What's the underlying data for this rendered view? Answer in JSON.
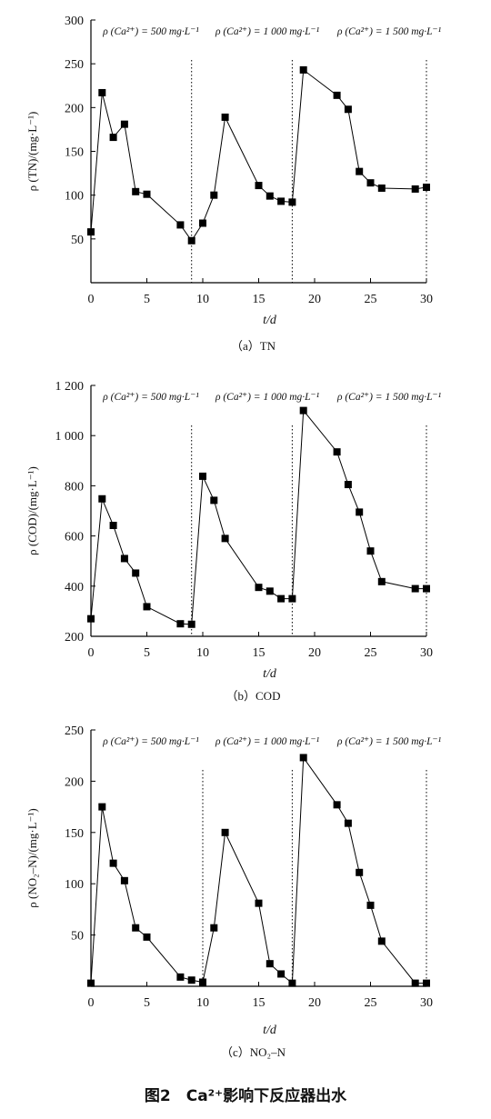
{
  "chart_data": [
    {
      "type": "line",
      "subcaption": "（a）TN",
      "ylabel": "ρ (TN)/(mg·L⁻¹)",
      "xlabel": "t/d",
      "header_labels": [
        "ρ (Ca²⁺) = 500 mg·L⁻¹",
        "ρ (Ca²⁺) = 1 000 mg·L⁻¹",
        "ρ (Ca²⁺) = 1 500 mg·L⁻¹"
      ],
      "xlim": [
        0,
        30
      ],
      "ylim": [
        0,
        300
      ],
      "xticks": [
        0,
        5,
        10,
        15,
        20,
        25,
        30
      ],
      "xtick_labels": [
        "0",
        "5",
        "10",
        "15",
        "20",
        "25",
        "30"
      ],
      "yticks": [
        50,
        100,
        150,
        200,
        250,
        300
      ],
      "ytick_labels": [
        "50",
        "100",
        "150",
        "200",
        "250",
        "300"
      ],
      "vlines": [
        9,
        18,
        30
      ],
      "series": [
        {
          "x": [
            0,
            1,
            2,
            3,
            4,
            5,
            8,
            9,
            10,
            11,
            12,
            15,
            16,
            17,
            18,
            19,
            22,
            23,
            24,
            25,
            26,
            29,
            30
          ],
          "y": [
            58,
            217,
            166,
            181,
            104,
            101,
            66,
            48,
            68,
            100,
            189,
            111,
            99,
            93,
            92,
            243,
            214,
            198,
            127,
            114,
            108,
            107,
            109
          ]
        }
      ]
    },
    {
      "type": "line",
      "subcaption": "（b）COD",
      "ylabel": "ρ (COD)/(mg·L⁻¹)",
      "xlabel": "t/d",
      "header_labels": [
        "ρ (Ca²⁺) = 500 mg·L⁻¹",
        "ρ (Ca²⁺) = 1 000 mg·L⁻¹",
        "ρ (Ca²⁺) = 1 500 mg·L⁻¹"
      ],
      "xlim": [
        0,
        30
      ],
      "ylim": [
        200,
        1200
      ],
      "xticks": [
        0,
        5,
        10,
        15,
        20,
        25,
        30
      ],
      "xtick_labels": [
        "0",
        "5",
        "10",
        "15",
        "20",
        "25",
        "30"
      ],
      "yticks": [
        200,
        400,
        600,
        800,
        1000,
        1200
      ],
      "ytick_labels": [
        "200",
        "400",
        "600",
        "800",
        "1 000",
        "1 200"
      ],
      "vlines": [
        9,
        18,
        30
      ],
      "series": [
        {
          "x": [
            0,
            1,
            2,
            3,
            4,
            5,
            8,
            9,
            10,
            11,
            12,
            15,
            16,
            17,
            18,
            19,
            22,
            23,
            24,
            25,
            26,
            29,
            30
          ],
          "y": [
            270,
            748,
            642,
            510,
            452,
            318,
            250,
            248,
            838,
            742,
            590,
            395,
            380,
            350,
            350,
            1100,
            935,
            805,
            695,
            540,
            418,
            390,
            390
          ]
        }
      ]
    },
    {
      "type": "line",
      "subcaption": "（c）NO₂–N",
      "ylabel": "ρ (NO₂–N)/(mg·L⁻¹)",
      "xlabel": "t/d",
      "header_labels": [
        "ρ (Ca²⁺) = 500 mg·L⁻¹",
        "ρ (Ca²⁺) = 1 000 mg·L⁻¹",
        "ρ (Ca²⁺) = 1 500 mg·L⁻¹"
      ],
      "xlim": [
        0,
        30
      ],
      "ylim": [
        0,
        250
      ],
      "xticks": [
        0,
        5,
        10,
        15,
        20,
        25,
        30
      ],
      "xtick_labels": [
        "0",
        "5",
        "10",
        "15",
        "20",
        "25",
        "30"
      ],
      "yticks": [
        50,
        100,
        150,
        200,
        250
      ],
      "ytick_labels": [
        "50",
        "100",
        "150",
        "200",
        "250"
      ],
      "vlines": [
        10,
        18,
        30
      ],
      "series": [
        {
          "x": [
            0,
            1,
            2,
            3,
            4,
            5,
            8,
            9,
            10,
            11,
            12,
            15,
            16,
            17,
            18,
            19,
            22,
            23,
            24,
            25,
            26,
            29,
            30
          ],
          "y": [
            3,
            175,
            120,
            103,
            57,
            48,
            9,
            6,
            4,
            57,
            150,
            81,
            22,
            12,
            3,
            223,
            177,
            159,
            111,
            79,
            44,
            3,
            3
          ]
        }
      ]
    }
  ],
  "figure_caption": "图2　Ca²⁺影响下反应器出水"
}
